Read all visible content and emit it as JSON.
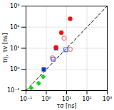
{
  "chart_data": {
    "type": "scatter",
    "xlabel": "τσ [ns]",
    "ylabel": "τη, τv [ns]",
    "log": true,
    "grid": true,
    "xlim": [
      0.1,
      1000
    ],
    "ylim": [
      0.1,
      1000
    ],
    "xticks": [
      {
        "value": 0.1,
        "label": "10⁻¹"
      },
      {
        "value": 1,
        "label": "10⁰"
      },
      {
        "value": 10,
        "label": "10¹"
      },
      {
        "value": 100,
        "label": "10²"
      },
      {
        "value": 1000,
        "label": "10³"
      }
    ],
    "yticks": [
      {
        "value": 0.1,
        "label": "10⁻¹"
      },
      {
        "value": 1,
        "label": "10⁰"
      },
      {
        "value": 10,
        "label": "10¹"
      },
      {
        "value": 100,
        "label": "10²"
      },
      {
        "value": 1000,
        "label": "10³"
      }
    ],
    "series": [
      {
        "type": "line",
        "line_style": "dashed",
        "color": "#000000",
        "x": [
          0.1,
          1000
        ],
        "values": [
          0.1,
          1000
        ]
      },
      {
        "type": "scatter",
        "marker": "diamond",
        "color": "#22cc22",
        "x": [
          0.18,
          0.42,
          0.7
        ],
        "values": [
          0.13,
          0.22,
          0.45
        ]
      },
      {
        "type": "scatter",
        "marker": "square",
        "color": "#1133cc",
        "x": [
          0.75,
          3.0
        ],
        "values": [
          1.0,
          10.0
        ]
      },
      {
        "type": "scatter",
        "marker": "circle",
        "color": "#ee1111",
        "x": [
          3.0,
          5.5,
          15.0
        ],
        "values": [
          11.0,
          55.0,
          250.0
        ]
      },
      {
        "type": "scatter",
        "marker": "open_circle",
        "color": "#ff8888",
        "x": [
          2.0,
          7.5,
          15.0
        ],
        "values": [
          3.5,
          30.0,
          9.0
        ]
      },
      {
        "type": "scatter",
        "marker": "open_square",
        "color": "#5577ee",
        "x": [
          2.2,
          9.0
        ],
        "values": [
          3.0,
          8.5
        ]
      }
    ]
  }
}
